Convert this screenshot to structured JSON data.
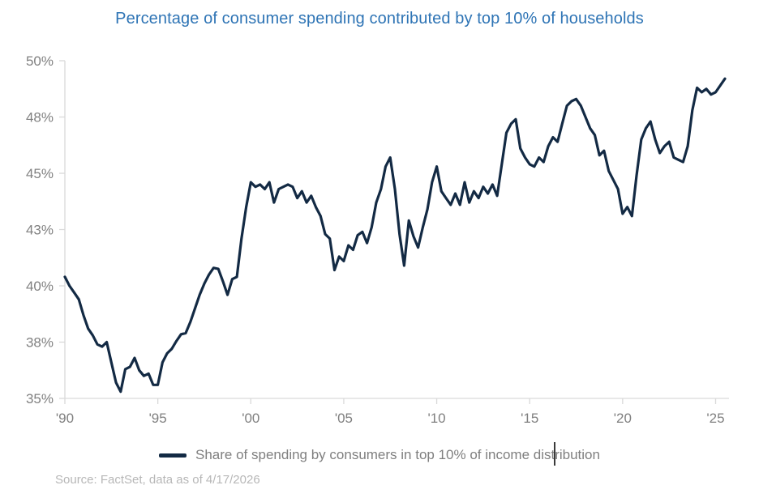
{
  "title": "Percentage of consumer spending contributed by top 10% of households",
  "legend": {
    "label": "Share of spending by consumers in top 10% of income distribution"
  },
  "source": "Source: FactSet, data as of 4/17/2026",
  "colors": {
    "line": "#132A44",
    "title": "#2E74B5",
    "axis_text": "#808080",
    "legend_text": "#7F7F7F",
    "source_text": "#B7B7B7",
    "axis_line": "#D9D9D9"
  },
  "chart_data": {
    "type": "line",
    "title": "Percentage of consumer spending contributed by top 10% of households",
    "xlabel": "",
    "ylabel": "",
    "grid": false,
    "legend_position": "bottom-center",
    "x_range": [
      1990,
      2025.72
    ],
    "y_range": [
      35,
      50
    ],
    "x_ticks": {
      "positions": [
        1990,
        1995,
        2000,
        2005,
        2010,
        2015,
        2020,
        2025
      ],
      "labels": [
        "'90",
        "'95",
        "'00",
        "'05",
        "'10",
        "'15",
        "'20",
        "'25"
      ]
    },
    "y_ticks": {
      "positions": [
        35,
        37.5,
        40,
        42.5,
        45,
        47.5,
        50
      ],
      "labels": [
        "35%",
        "38%",
        "40%",
        "43%",
        "45%",
        "48%",
        "50%"
      ]
    },
    "series": [
      {
        "name": "Share of spending by consumers in top 10% of income distribution",
        "unit": "%",
        "frequency": "quarterly",
        "x_start": 1990.0,
        "x_step": 0.25,
        "values": [
          40.4,
          40.0,
          39.7,
          39.4,
          38.7,
          38.1,
          37.8,
          37.4,
          37.3,
          37.5,
          36.6,
          35.7,
          35.3,
          36.3,
          36.4,
          36.8,
          36.25,
          36.0,
          36.1,
          35.6,
          35.6,
          36.6,
          37.0,
          37.2,
          37.55,
          37.85,
          37.9,
          38.4,
          39.0,
          39.6,
          40.1,
          40.5,
          40.8,
          40.75,
          40.2,
          39.6,
          40.3,
          40.4,
          42.1,
          43.5,
          44.6,
          44.4,
          44.5,
          44.3,
          44.6,
          43.7,
          44.3,
          44.4,
          44.5,
          44.4,
          43.9,
          44.2,
          43.7,
          44.0,
          43.5,
          43.1,
          42.3,
          42.1,
          40.7,
          41.3,
          41.1,
          41.8,
          41.6,
          42.25,
          42.4,
          41.9,
          42.6,
          43.7,
          44.3,
          45.3,
          45.7,
          44.3,
          42.3,
          40.9,
          42.9,
          42.2,
          41.7,
          42.6,
          43.4,
          44.6,
          45.3,
          44.2,
          43.9,
          43.6,
          44.1,
          43.6,
          44.6,
          43.7,
          44.2,
          43.9,
          44.4,
          44.1,
          44.5,
          44.0,
          45.4,
          46.8,
          47.2,
          47.4,
          46.1,
          45.7,
          45.4,
          45.3,
          45.7,
          45.5,
          46.2,
          46.6,
          46.4,
          47.2,
          48.0,
          48.2,
          48.3,
          48.0,
          47.5,
          47.0,
          46.7,
          45.8,
          46.0,
          45.1,
          44.7,
          44.3,
          43.2,
          43.5,
          43.1,
          44.9,
          46.5,
          47.0,
          47.3,
          46.5,
          45.9,
          46.2,
          46.4,
          45.7,
          45.6,
          45.5,
          46.2,
          47.8,
          48.8,
          48.6,
          48.75,
          48.5,
          48.6,
          48.9,
          49.2
        ]
      }
    ]
  }
}
